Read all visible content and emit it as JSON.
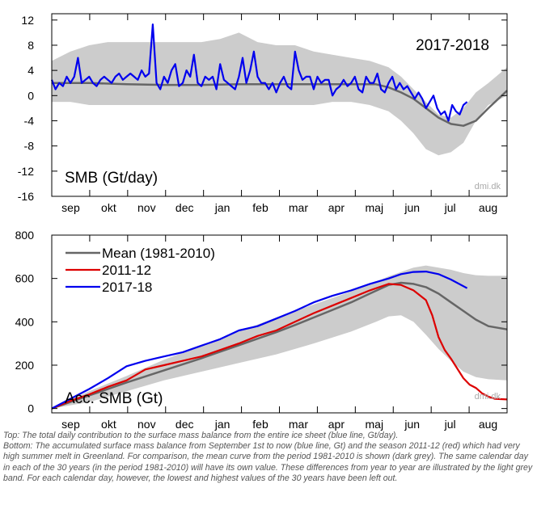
{
  "chart_data": [
    {
      "type": "line",
      "panel": "top",
      "label": "SMB (Gt/day)",
      "season_label": "2017-2018",
      "watermark": "dmi.dk",
      "ylim": [
        -16,
        13
      ],
      "yticks": [
        12,
        8,
        4,
        0,
        -4,
        -8,
        -12,
        -16
      ],
      "months": [
        "sep",
        "okt",
        "nov",
        "dec",
        "jan",
        "feb",
        "mar",
        "apr",
        "maj",
        "jun",
        "jul",
        "aug"
      ],
      "x_unit": "day of season (day 0 = 1 September)",
      "xlim": [
        0,
        365
      ],
      "grid": false,
      "band_light": {
        "x": [
          0,
          15,
          30,
          45,
          60,
          75,
          90,
          105,
          120,
          135,
          150,
          165,
          180,
          195,
          210,
          225,
          240,
          255,
          270,
          280,
          290,
          300,
          310,
          320,
          330,
          340,
          350,
          365
        ],
        "upper": [
          5.5,
          7,
          8,
          8.5,
          8.5,
          8.5,
          8.5,
          8.5,
          8.5,
          9,
          10,
          8.5,
          8,
          8,
          7,
          6.5,
          6,
          5.5,
          4.5,
          3,
          1,
          -1,
          -3,
          -3.5,
          -2,
          0.5,
          2,
          4.5
        ],
        "lower": [
          -1,
          -1,
          -1.5,
          -1.5,
          -1.5,
          -1.5,
          -1.5,
          -1.5,
          -1.5,
          -1.5,
          -1.5,
          -1.5,
          -1.5,
          -1.5,
          -1.5,
          -1,
          -1,
          -1.5,
          -2.5,
          -4,
          -6,
          -8.5,
          -9.5,
          -9,
          -7.5,
          -4,
          -1.5,
          0
        ]
      },
      "series": [
        {
          "name": "Mean (1981-2010)",
          "color": "#666666",
          "x": [
            0,
            30,
            60,
            90,
            120,
            150,
            180,
            210,
            240,
            260,
            270,
            280,
            290,
            300,
            310,
            320,
            330,
            340,
            350,
            365
          ],
          "y": [
            2,
            2,
            1.8,
            1.7,
            1.7,
            1.8,
            1.8,
            1.8,
            1.8,
            1.8,
            1.3,
            0.5,
            -0.5,
            -2,
            -3.5,
            -4.5,
            -4.8,
            -4,
            -2,
            0.8
          ]
        },
        {
          "name": "2017-18",
          "color": "#0000ee",
          "x": [
            0,
            3,
            6,
            9,
            12,
            15,
            18,
            21,
            24,
            27,
            30,
            33,
            36,
            39,
            42,
            45,
            48,
            51,
            54,
            57,
            60,
            63,
            66,
            69,
            72,
            75,
            78,
            81,
            84,
            87,
            90,
            93,
            96,
            99,
            102,
            105,
            108,
            111,
            114,
            117,
            120,
            123,
            126,
            129,
            132,
            135,
            138,
            141,
            144,
            147,
            150,
            153,
            156,
            159,
            162,
            165,
            168,
            171,
            174,
            177,
            180,
            183,
            186,
            189,
            192,
            195,
            198,
            201,
            204,
            207,
            210,
            213,
            216,
            219,
            222,
            225,
            228,
            231,
            234,
            237,
            240,
            243,
            246,
            249,
            252,
            255,
            258,
            261,
            264,
            267,
            270,
            273,
            276,
            279,
            282,
            285,
            288,
            291,
            294,
            297,
            300,
            303,
            306,
            309,
            312,
            315,
            318,
            321,
            324,
            327,
            330,
            333
          ],
          "y": [
            2.5,
            1,
            2,
            1.5,
            3,
            2,
            3,
            6,
            2,
            2.5,
            3,
            2,
            1.5,
            2.5,
            3,
            2.5,
            2,
            3,
            3.5,
            2.5,
            3,
            3.5,
            3,
            2.5,
            4,
            3,
            3.5,
            11.3,
            2,
            1,
            3,
            2,
            4,
            5,
            1.5,
            2,
            4,
            3,
            6.5,
            2,
            1.5,
            3,
            2.5,
            3,
            1,
            5,
            2.5,
            2,
            1.5,
            1,
            3,
            6,
            2,
            4,
            7,
            3,
            2,
            2,
            1,
            2,
            0.5,
            2,
            3,
            1.5,
            1,
            7,
            4,
            2.5,
            3,
            3,
            1,
            3,
            2,
            2.5,
            2.5,
            0,
            1,
            1.5,
            2.5,
            1.5,
            2,
            3,
            1,
            0.5,
            3,
            2,
            2,
            3.5,
            1,
            0.5,
            2,
            3,
            1,
            2,
            1,
            1.5,
            0.5,
            -0.5,
            0.5,
            -0.5,
            -2,
            -1,
            0,
            -2,
            -3,
            -2.5,
            -4,
            -1.5,
            -2.5,
            -3,
            -1.5,
            -1
          ]
        }
      ]
    },
    {
      "type": "line",
      "panel": "bottom",
      "label": "Acc. SMB (Gt)",
      "watermark": "dmi.dk",
      "ylim": [
        -20,
        800
      ],
      "yticks": [
        0,
        200,
        400,
        600,
        800
      ],
      "months": [
        "sep",
        "okt",
        "nov",
        "dec",
        "jan",
        "feb",
        "mar",
        "apr",
        "maj",
        "jun",
        "jul",
        "aug"
      ],
      "x_unit": "day of season (day 0 = 1 September)",
      "xlim": [
        0,
        365
      ],
      "grid": false,
      "legend_position": "top-left",
      "band_light": {
        "x": [
          0,
          30,
          60,
          90,
          120,
          150,
          180,
          210,
          240,
          260,
          270,
          280,
          290,
          300,
          310,
          320,
          330,
          340,
          350,
          365
        ],
        "upper": [
          0,
          80,
          150,
          225,
          290,
          355,
          420,
          480,
          540,
          585,
          610,
          630,
          650,
          660,
          650,
          640,
          625,
          615,
          612,
          612
        ],
        "lower": [
          0,
          30,
          80,
          130,
          170,
          210,
          250,
          300,
          355,
          400,
          425,
          430,
          400,
          340,
          275,
          220,
          170,
          145,
          135,
          130
        ]
      },
      "series": [
        {
          "name": "Mean (1981-2010)",
          "color": "#666666",
          "x": [
            0,
            15,
            30,
            45,
            60,
            75,
            90,
            105,
            120,
            135,
            150,
            165,
            180,
            195,
            210,
            225,
            240,
            255,
            270,
            280,
            290,
            300,
            310,
            320,
            330,
            340,
            350,
            365
          ],
          "y": [
            0,
            30,
            60,
            90,
            120,
            148,
            176,
            204,
            232,
            262,
            292,
            322,
            352,
            385,
            420,
            455,
            490,
            530,
            570,
            580,
            575,
            560,
            530,
            490,
            450,
            410,
            380,
            365
          ]
        },
        {
          "name": "2011-12",
          "color": "#dd0000",
          "x": [
            0,
            15,
            30,
            45,
            60,
            75,
            90,
            105,
            120,
            135,
            150,
            165,
            180,
            195,
            210,
            225,
            240,
            255,
            270,
            280,
            290,
            300,
            305,
            310,
            315,
            320,
            325,
            330,
            335,
            340,
            345,
            350,
            355,
            365
          ],
          "y": [
            0,
            35,
            65,
            100,
            130,
            180,
            200,
            220,
            240,
            270,
            300,
            335,
            360,
            400,
            440,
            475,
            510,
            545,
            575,
            570,
            545,
            500,
            430,
            330,
            270,
            230,
            185,
            140,
            110,
            95,
            70,
            55,
            45,
            42
          ]
        },
        {
          "name": "2017-18",
          "color": "#0000ee",
          "x": [
            0,
            15,
            30,
            45,
            60,
            75,
            90,
            105,
            120,
            135,
            150,
            165,
            180,
            195,
            210,
            225,
            240,
            255,
            270,
            280,
            290,
            300,
            310,
            320,
            333
          ],
          "y": [
            0,
            45,
            90,
            140,
            195,
            220,
            240,
            260,
            290,
            320,
            360,
            380,
            415,
            450,
            490,
            520,
            545,
            575,
            600,
            620,
            630,
            632,
            620,
            595,
            555
          ]
        }
      ]
    }
  ],
  "caption": {
    "top": "Top: The total daily contribution to the surface mass balance from the entire ice sheet (blue line, Gt/day).",
    "bottom": "Bottom: The accumulated surface mass balance from September 1st to now (blue line, Gt) and the season 2011-12 (red) which had very high summer melt in Greenland. For comparison, the mean curve from the period 1981-2010 is shown (dark grey). The same calendar day in each of the 30 years (in the period 1981-2010) will have its own value. These differences from year to year are illustrated by the light grey band. For each calendar day, however, the lowest and highest values of the 30 years have been left out."
  },
  "colors": {
    "band": "#cccccc",
    "frame": "#000000"
  }
}
